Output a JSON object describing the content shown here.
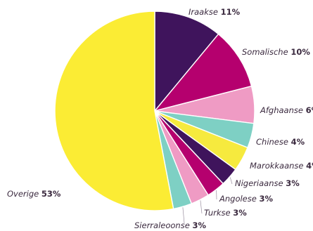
{
  "chart_data": {
    "type": "pie",
    "title": "",
    "start": "12 o'clock",
    "direction": "clockwise",
    "slices": [
      {
        "label": "Iraakse",
        "value": 11,
        "value_label": "11%",
        "color": "#3f145c"
      },
      {
        "label": "Somalische",
        "value": 10,
        "value_label": "10%",
        "color": "#b5006e"
      },
      {
        "label": "Afghaanse",
        "value": 6,
        "value_label": "6%",
        "color": "#ef9bc4"
      },
      {
        "label": "Chinese",
        "value": 4,
        "value_label": "4%",
        "color": "#7ed0c4"
      },
      {
        "label": "Marokkaanse",
        "value": 4,
        "value_label": "4%",
        "color": "#f6ea3e"
      },
      {
        "label": "Nigeriaanse",
        "value": 3,
        "value_label": "3%",
        "color": "#3f145c"
      },
      {
        "label": "Angolese",
        "value": 3,
        "value_label": "3%",
        "color": "#b5006e"
      },
      {
        "label": "Turkse",
        "value": 3,
        "value_label": "3%",
        "color": "#ef9bc4"
      },
      {
        "label": "Sierraleoonse",
        "value": 3,
        "value_label": "3%",
        "color": "#7ed0c4"
      },
      {
        "label": "Overige",
        "value": 53,
        "value_label": "53%",
        "color": "#fbec34"
      }
    ]
  }
}
